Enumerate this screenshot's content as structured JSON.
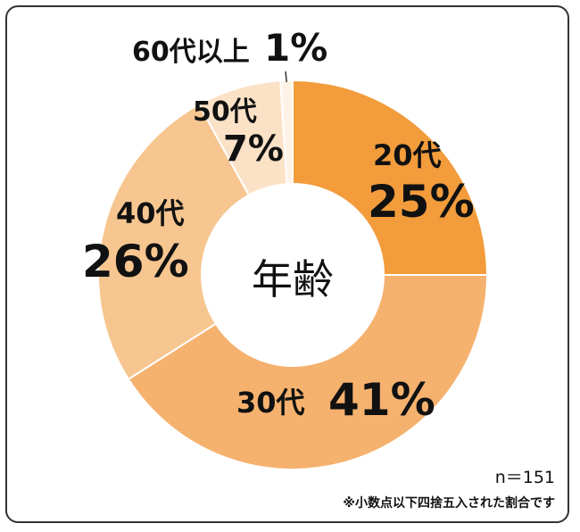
{
  "chart_data": {
    "type": "pie",
    "center_label": "年齢",
    "slices": [
      {
        "label": "20代",
        "value": 25,
        "value_text": "25%",
        "color": "#F29C3C"
      },
      {
        "label": "30代",
        "value": 41,
        "value_text": "41%",
        "color": "#F5B16E"
      },
      {
        "label": "40代",
        "value": 26,
        "value_text": "26%",
        "color": "#F7C690"
      },
      {
        "label": "50代",
        "value": 7,
        "value_text": "7%",
        "color": "#FBE2C7"
      },
      {
        "label": "60代以上",
        "value": 1,
        "value_text": "1%",
        "color": "#FDF2E5"
      }
    ]
  },
  "sample_size": "n＝151",
  "footnote": "※小数点以下四捨五入された割合です"
}
